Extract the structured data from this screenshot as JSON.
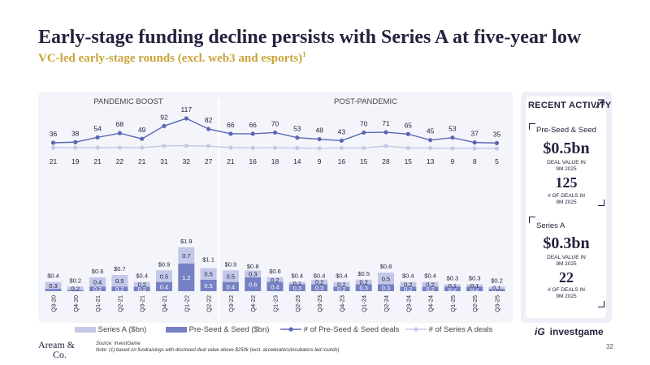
{
  "header": {
    "title": "Early-stage funding decline persists with Series A at five-year low",
    "subtitle": "VC-led early-stage rounds (excl. web3 and esports)",
    "subtitle_note": "1"
  },
  "chart_data": {
    "type": "bar",
    "period_labels": [
      "PANDEMIC BOOST",
      "POST-PANDEMIC"
    ],
    "categories": [
      "Q3-20",
      "Q4-20",
      "Q1-21",
      "Q2-21",
      "Q3-21",
      "Q4-21",
      "Q1-22",
      "Q2-22",
      "Q3-22",
      "Q4-22",
      "Q1-23",
      "Q2-23",
      "Q3-23",
      "Q4-23",
      "Q1-24",
      "Q2-24",
      "Q3-24",
      "Q4-24",
      "Q1-25",
      "Q2-25",
      "Q3-25"
    ],
    "series": [
      {
        "name": "Pre-Seed & Seed ($bn)",
        "kind": "stacked-bar",
        "color": "#7581c4",
        "values": [
          0.1,
          0.05,
          0.2,
          0.2,
          0.2,
          0.4,
          1.2,
          0.5,
          0.4,
          0.6,
          0.4,
          0.3,
          0.3,
          0.2,
          0.3,
          0.3,
          0.2,
          0.2,
          0.2,
          0.2,
          0.1
        ],
        "labels": [
          "",
          "",
          "0.2",
          "0.2",
          "0.2",
          "0.4",
          "1.2",
          "0.5",
          "0.4",
          "0.6",
          "0.4",
          "0.3",
          "0.3",
          "0.2",
          "0.3",
          "0.3",
          "0.2",
          "0.2",
          "0.2",
          "0.2",
          "0.1"
        ]
      },
      {
        "name": "Series A ($bn)",
        "kind": "stacked-bar",
        "color": "#c3c8e8",
        "values": [
          0.3,
          0.15,
          0.4,
          0.5,
          0.2,
          0.5,
          0.7,
          0.5,
          0.5,
          0.3,
          0.2,
          0.1,
          0.2,
          0.2,
          0.2,
          0.5,
          0.2,
          0.2,
          0.1,
          0.1,
          0.1
        ],
        "labels": [
          "0.3",
          "0.2",
          "0.4",
          "0.5",
          "0.2",
          "0.5",
          "0.7",
          "0.5",
          "0.5",
          "0.3",
          "0.2",
          "0.1",
          "0.2",
          "0.2",
          "0.2",
          "0.5",
          "0.2",
          "0.2",
          "0.1",
          "0.1",
          "0.1"
        ]
      },
      {
        "name": "# of Pre-Seed & Seed deals",
        "kind": "line",
        "color": "#5a67b5",
        "values": [
          36,
          38,
          54,
          68,
          49,
          92,
          117,
          82,
          66,
          66,
          70,
          53,
          48,
          43,
          70,
          71,
          65,
          45,
          53,
          37,
          35
        ]
      },
      {
        "name": "# of Series A deals",
        "kind": "line",
        "color": "#c3c8e8",
        "values": [
          21,
          19,
          21,
          22,
          21,
          31,
          32,
          27,
          21,
          16,
          18,
          14,
          9,
          16,
          15,
          28,
          15,
          13,
          9,
          8,
          5
        ]
      }
    ],
    "totals": [
      "$0.4",
      "$0.2",
      "$0.6",
      "$0.7",
      "$0.4",
      "$0.9",
      "$1.9",
      "$1.1",
      "$0.9",
      "$0.8",
      "$0.6",
      "$0.4",
      "$0.4",
      "$0.4",
      "$0.5",
      "$0.8",
      "$0.4",
      "$0.4",
      "$0.3",
      "$0.3",
      "$0.2"
    ],
    "total_values": [
      0.4,
      0.2,
      0.6,
      0.7,
      0.4,
      0.9,
      1.9,
      1.1,
      0.9,
      0.8,
      0.6,
      0.4,
      0.4,
      0.4,
      0.5,
      0.8,
      0.4,
      0.4,
      0.3,
      0.3,
      0.2
    ]
  },
  "sidebar": {
    "title": "RECENT ACTIVITY",
    "cards": [
      {
        "label": "Pre-Seed & Seed",
        "value": "$0.5bn",
        "value_caption_1": "DEAL VALUE IN",
        "value_caption_2": "9M 2025",
        "deals": "125",
        "deals_caption_1": "# OF DEALS IN",
        "deals_caption_2": "9M 2025"
      },
      {
        "label": "Series A",
        "value": "$0.3bn",
        "value_caption_1": "DEAL VALUE IN",
        "value_caption_2": "9M 2025",
        "deals": "22",
        "deals_caption_1": "# OF DEALS IN",
        "deals_caption_2": "9M 2025"
      }
    ]
  },
  "legend": {
    "series_a": "Series A ($bn)",
    "seed": "Pre-Seed & Seed ($bn)",
    "seed_deals": "# of Pre-Seed & Seed deals",
    "series_a_deals": "# of Series A deals"
  },
  "footer": {
    "logo_line1": "Aream &",
    "logo_line2": "Co.",
    "source": "Source: InvestGame",
    "note": "Note: (1) based on fundraisings with disclosed deal value above $250k (excl. accelerators/incubators-led rounds)",
    "brand": "investgame",
    "brand_mark": "iG",
    "page": "32"
  },
  "colors": {
    "navy": "#23233f",
    "gold": "#c9a43a",
    "seed": "#7581c4",
    "series_a": "#c3c8e8",
    "seed_line": "#5a67b5"
  }
}
